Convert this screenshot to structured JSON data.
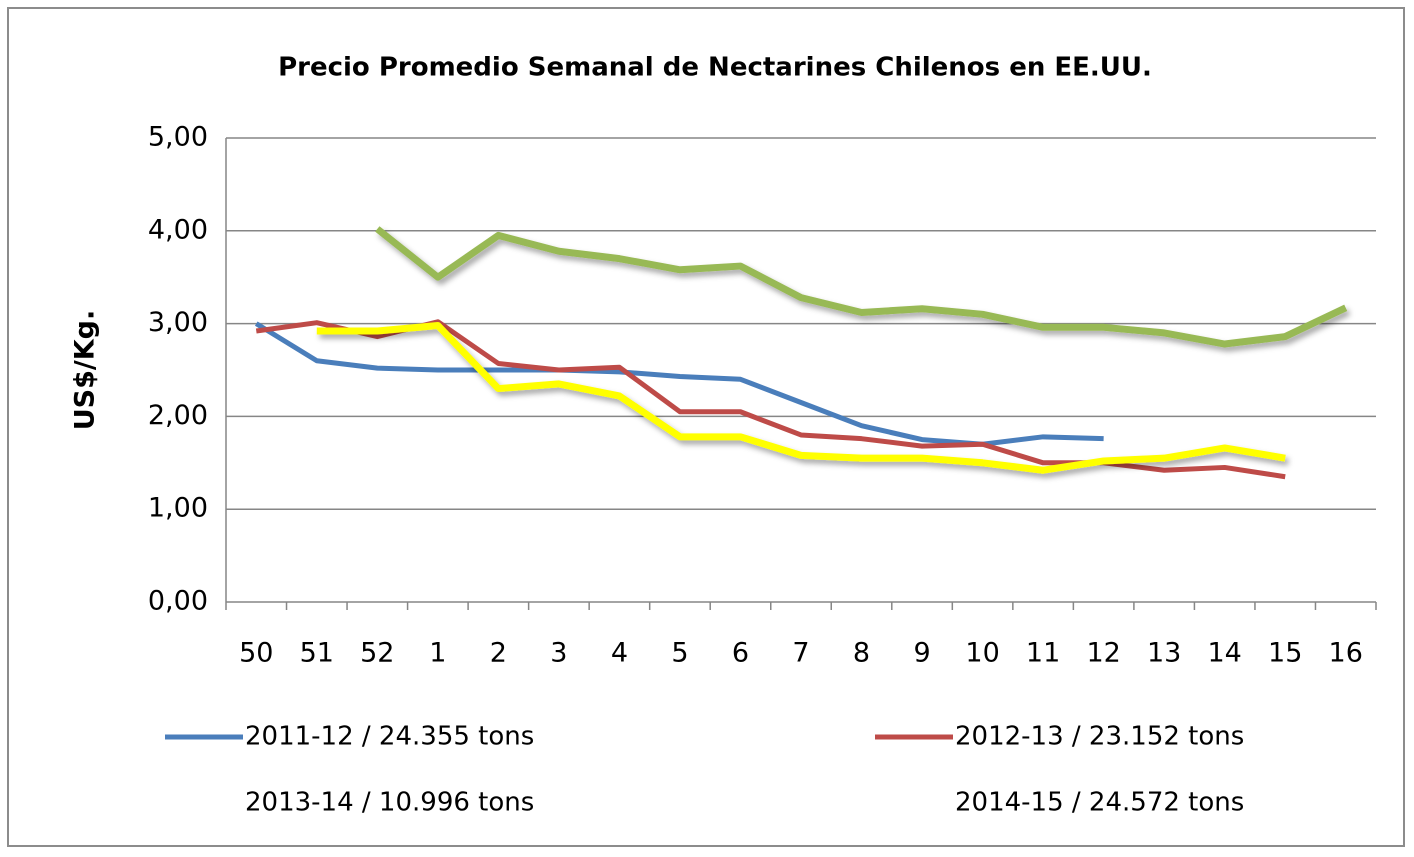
{
  "chart_data": {
    "type": "line",
    "title": "Precio Promedio Semanal de Nectarines Chilenos en EE.UU.",
    "y_label": "US$/Kg.",
    "categories": [
      "50",
      "51",
      "52",
      "1",
      "2",
      "3",
      "4",
      "5",
      "6",
      "7",
      "8",
      "9",
      "10",
      "11",
      "12",
      "13",
      "14",
      "15",
      "16"
    ],
    "ylim": [
      0,
      5
    ],
    "yticks": [
      {
        "value": 0,
        "label": "0,00"
      },
      {
        "value": 1,
        "label": "1,00"
      },
      {
        "value": 2,
        "label": "2,00"
      },
      {
        "value": 3,
        "label": "3,00"
      },
      {
        "value": 4,
        "label": "4,00"
      },
      {
        "value": 5,
        "label": "5,00"
      }
    ],
    "grid": true,
    "legend": "bottom",
    "series": [
      {
        "name": "2011-12 / 24.355 tons",
        "color": "#4a7ebb",
        "values": [
          3.0,
          2.6,
          2.52,
          2.5,
          2.5,
          2.5,
          2.48,
          2.43,
          2.4,
          2.15,
          1.9,
          1.75,
          1.7,
          1.78,
          1.76,
          null,
          null,
          null,
          null
        ]
      },
      {
        "name": "2012-13 / 23.152 tons",
        "color": "#be4b48",
        "values": [
          2.92,
          3.01,
          2.86,
          3.02,
          2.57,
          2.5,
          2.53,
          2.05,
          2.05,
          1.8,
          1.76,
          1.68,
          1.7,
          1.5,
          1.5,
          1.42,
          1.45,
          1.35,
          null
        ]
      },
      {
        "name": "2013-14 / 10.996 tons",
        "color": "#98b954",
        "values": [
          null,
          null,
          4.02,
          3.5,
          3.95,
          3.78,
          3.7,
          3.58,
          3.62,
          3.28,
          3.12,
          3.16,
          3.1,
          2.96,
          2.96,
          2.9,
          2.78,
          2.86,
          3.17
        ]
      },
      {
        "name": "2014-15 / 24.572 tons",
        "color": "#ffff00",
        "values": [
          null,
          2.92,
          2.92,
          2.98,
          2.3,
          2.35,
          2.22,
          1.78,
          1.78,
          1.58,
          1.55,
          1.55,
          1.5,
          1.42,
          1.52,
          1.55,
          1.66,
          1.55,
          null
        ]
      }
    ]
  }
}
